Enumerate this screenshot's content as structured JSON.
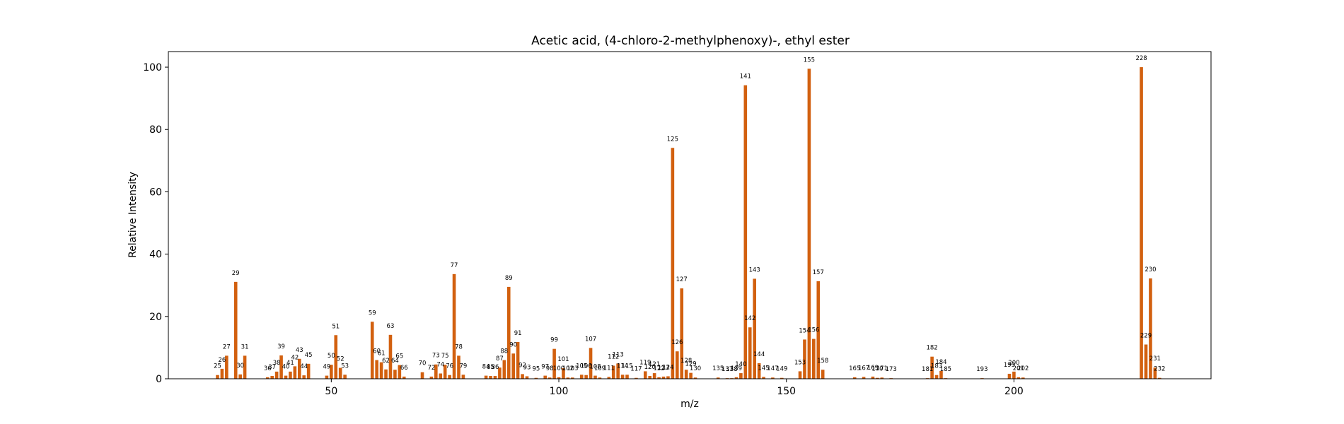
{
  "chart_data": {
    "type": "bar",
    "title": "Acetic acid, (4-chloro-2-methylphenoxy)-, ethyl ester",
    "xlabel": "m/z",
    "ylabel": "Relative Intensity",
    "xlim": [
      14.2,
      243.3
    ],
    "ylim": [
      0,
      105
    ],
    "xticks": [
      50,
      100,
      150,
      200
    ],
    "yticks": [
      0,
      20,
      40,
      60,
      80,
      100
    ],
    "bar_color": "#d2600f",
    "grid": false,
    "peaks": [
      {
        "mz": 25,
        "intensity": 1.2
      },
      {
        "mz": 26,
        "intensity": 3.2
      },
      {
        "mz": 27,
        "intensity": 7.4
      },
      {
        "mz": 29,
        "intensity": 31.1
      },
      {
        "mz": 30,
        "intensity": 1.4
      },
      {
        "mz": 31,
        "intensity": 7.4
      },
      {
        "mz": 36,
        "intensity": 0.5
      },
      {
        "mz": 37,
        "intensity": 0.9
      },
      {
        "mz": 38,
        "intensity": 2.3
      },
      {
        "mz": 39,
        "intensity": 7.5
      },
      {
        "mz": 40,
        "intensity": 1.0
      },
      {
        "mz": 41,
        "intensity": 2.3
      },
      {
        "mz": 42,
        "intensity": 4.0
      },
      {
        "mz": 43,
        "intensity": 6.4
      },
      {
        "mz": 44,
        "intensity": 1.1
      },
      {
        "mz": 45,
        "intensity": 4.8
      },
      {
        "mz": 49,
        "intensity": 1.0
      },
      {
        "mz": 50,
        "intensity": 4.5
      },
      {
        "mz": 51,
        "intensity": 14.0
      },
      {
        "mz": 52,
        "intensity": 3.5
      },
      {
        "mz": 53,
        "intensity": 1.3
      },
      {
        "mz": 59,
        "intensity": 18.3
      },
      {
        "mz": 60,
        "intensity": 6.0
      },
      {
        "mz": 61,
        "intensity": 5.3
      },
      {
        "mz": 62,
        "intensity": 3.0
      },
      {
        "mz": 63,
        "intensity": 14.1
      },
      {
        "mz": 64,
        "intensity": 2.9
      },
      {
        "mz": 65,
        "intensity": 4.4
      },
      {
        "mz": 66,
        "intensity": 0.7
      },
      {
        "mz": 70,
        "intensity": 2.1
      },
      {
        "mz": 72,
        "intensity": 0.7
      },
      {
        "mz": 73,
        "intensity": 4.6
      },
      {
        "mz": 74,
        "intensity": 1.7
      },
      {
        "mz": 75,
        "intensity": 4.5
      },
      {
        "mz": 76,
        "intensity": 1.2
      },
      {
        "mz": 77,
        "intensity": 33.6
      },
      {
        "mz": 78,
        "intensity": 7.4
      },
      {
        "mz": 79,
        "intensity": 1.3
      },
      {
        "mz": 84,
        "intensity": 1.0
      },
      {
        "mz": 85,
        "intensity": 0.9
      },
      {
        "mz": 86,
        "intensity": 0.9
      },
      {
        "mz": 87,
        "intensity": 3.6
      },
      {
        "mz": 88,
        "intensity": 6.0
      },
      {
        "mz": 89,
        "intensity": 29.5
      },
      {
        "mz": 90,
        "intensity": 8.1
      },
      {
        "mz": 91,
        "intensity": 11.8
      },
      {
        "mz": 92,
        "intensity": 1.5
      },
      {
        "mz": 93,
        "intensity": 0.8
      },
      {
        "mz": 95,
        "intensity": 0.3
      },
      {
        "mz": 97,
        "intensity": 1.0
      },
      {
        "mz": 98,
        "intensity": 0.4
      },
      {
        "mz": 99,
        "intensity": 9.6
      },
      {
        "mz": 100,
        "intensity": 0.5
      },
      {
        "mz": 101,
        "intensity": 3.4
      },
      {
        "mz": 102,
        "intensity": 0.4
      },
      {
        "mz": 103,
        "intensity": 0.4
      },
      {
        "mz": 105,
        "intensity": 1.3
      },
      {
        "mz": 106,
        "intensity": 1.2
      },
      {
        "mz": 107,
        "intensity": 9.9
      },
      {
        "mz": 108,
        "intensity": 1.0
      },
      {
        "mz": 109,
        "intensity": 0.4
      },
      {
        "mz": 111,
        "intensity": 0.6
      },
      {
        "mz": 112,
        "intensity": 4.2
      },
      {
        "mz": 113,
        "intensity": 4.9
      },
      {
        "mz": 114,
        "intensity": 1.3
      },
      {
        "mz": 115,
        "intensity": 1.3
      },
      {
        "mz": 117,
        "intensity": 0.3
      },
      {
        "mz": 119,
        "intensity": 2.4
      },
      {
        "mz": 120,
        "intensity": 0.9
      },
      {
        "mz": 121,
        "intensity": 1.8
      },
      {
        "mz": 122,
        "intensity": 0.5
      },
      {
        "mz": 123,
        "intensity": 0.7
      },
      {
        "mz": 124,
        "intensity": 0.8
      },
      {
        "mz": 125,
        "intensity": 74.1
      },
      {
        "mz": 126,
        "intensity": 8.8
      },
      {
        "mz": 127,
        "intensity": 29.0
      },
      {
        "mz": 128,
        "intensity": 2.9
      },
      {
        "mz": 129,
        "intensity": 1.9
      },
      {
        "mz": 130,
        "intensity": 0.4
      },
      {
        "mz": 135,
        "intensity": 0.4
      },
      {
        "mz": 137,
        "intensity": 0.2
      },
      {
        "mz": 138,
        "intensity": 0.2
      },
      {
        "mz": 139,
        "intensity": 0.5
      },
      {
        "mz": 140,
        "intensity": 1.8
      },
      {
        "mz": 141,
        "intensity": 94.2
      },
      {
        "mz": 142,
        "intensity": 16.5
      },
      {
        "mz": 143,
        "intensity": 32.1
      },
      {
        "mz": 144,
        "intensity": 5.0
      },
      {
        "mz": 145,
        "intensity": 0.6
      },
      {
        "mz": 147,
        "intensity": 0.4
      },
      {
        "mz": 149,
        "intensity": 0.3
      },
      {
        "mz": 153,
        "intensity": 2.4
      },
      {
        "mz": 154,
        "intensity": 12.6
      },
      {
        "mz": 155,
        "intensity": 99.5
      },
      {
        "mz": 156,
        "intensity": 12.8
      },
      {
        "mz": 157,
        "intensity": 31.3
      },
      {
        "mz": 158,
        "intensity": 2.9
      },
      {
        "mz": 165,
        "intensity": 0.5
      },
      {
        "mz": 167,
        "intensity": 0.6
      },
      {
        "mz": 169,
        "intensity": 0.7
      },
      {
        "mz": 170,
        "intensity": 0.3
      },
      {
        "mz": 171,
        "intensity": 0.4
      },
      {
        "mz": 173,
        "intensity": 0.2
      },
      {
        "mz": 181,
        "intensity": 0.2
      },
      {
        "mz": 182,
        "intensity": 7.1
      },
      {
        "mz": 183,
        "intensity": 1.2
      },
      {
        "mz": 184,
        "intensity": 2.5
      },
      {
        "mz": 185,
        "intensity": 0.2
      },
      {
        "mz": 193,
        "intensity": 0.2
      },
      {
        "mz": 199,
        "intensity": 1.6
      },
      {
        "mz": 200,
        "intensity": 2.3
      },
      {
        "mz": 201,
        "intensity": 0.5
      },
      {
        "mz": 202,
        "intensity": 0.4
      },
      {
        "mz": 228,
        "intensity": 100.0
      },
      {
        "mz": 229,
        "intensity": 11.0
      },
      {
        "mz": 230,
        "intensity": 32.2
      },
      {
        "mz": 231,
        "intensity": 3.6
      },
      {
        "mz": 232,
        "intensity": 0.3
      }
    ]
  }
}
